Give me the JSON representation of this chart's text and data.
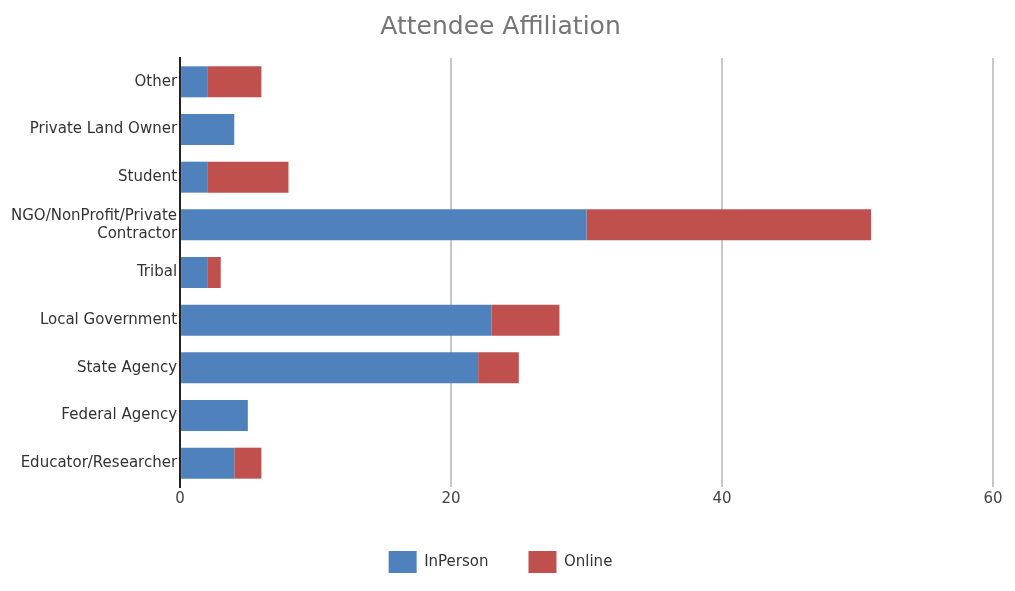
{
  "chart_data": {
    "type": "bar",
    "title": "Attendee Affiliation",
    "orientation": "horizontal",
    "stacked": true,
    "categories": [
      "Other",
      "Private Land Owner",
      "Student",
      "NGO/NonProfit/Private Contractor",
      "Tribal",
      "Local Government",
      "State Agency",
      "Federal Agency",
      "Educator/Researcher"
    ],
    "series": [
      {
        "name": "InPerson",
        "color": "#4f81bd",
        "values": [
          2,
          4,
          2,
          30,
          2,
          23,
          22,
          5,
          4
        ]
      },
      {
        "name": "Online",
        "color": "#c0504d",
        "values": [
          4,
          null,
          6,
          21,
          1,
          5,
          3,
          null,
          2
        ]
      }
    ],
    "xlim": [
      0,
      60
    ],
    "xticks": [
      0,
      20,
      40,
      60
    ],
    "grid": "x",
    "legend": "bottom"
  }
}
